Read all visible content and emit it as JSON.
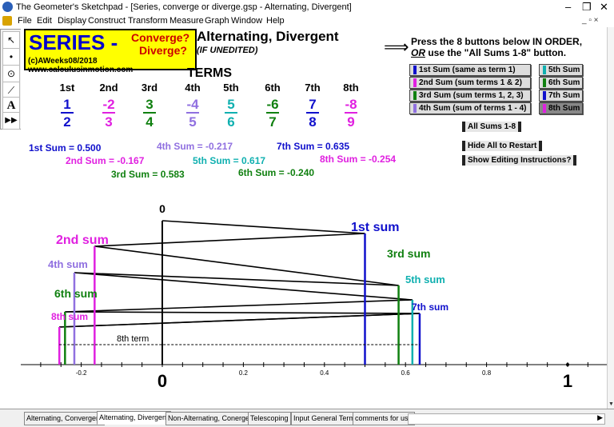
{
  "window": {
    "title": "The Geometer's Sketchpad - [Series, converge or diverge.gsp - Alternating, Divergent]",
    "controls": {
      "minimize": "–",
      "restore": "❐",
      "close": "✕"
    },
    "mdi_controls": "_ ▫ ×"
  },
  "menu": [
    "File",
    "Edit",
    "Display",
    "Construct",
    "Transform",
    "Measure",
    "Graph",
    "Window",
    "Help"
  ],
  "toolbox": [
    {
      "name": "arrow-tool-icon",
      "glyph": "↖"
    },
    {
      "name": "point-tool-icon",
      "glyph": "•"
    },
    {
      "name": "compass-tool-icon",
      "glyph": "⊙"
    },
    {
      "name": "straightedge-tool-icon",
      "glyph": "⟋"
    },
    {
      "name": "text-tool-icon",
      "glyph": "A"
    },
    {
      "name": "custom-tool-icon",
      "glyph": "▶▶"
    }
  ],
  "logo": {
    "series": "SERIES -",
    "q1": "Converge?",
    "q2": "Diverge?",
    "copyright": "(c)AWeeks08/2018 www.calculusinmotion.com"
  },
  "heading": {
    "title": "Alternating, Divergent",
    "subtitle": "(IF UNEDITED)"
  },
  "instructions": {
    "arrow": "⟹",
    "line1": "Press the 8 buttons below IN ORDER,",
    "line2_or": "OR",
    "line2_rest": " use the \"All Sums 1-8\" button."
  },
  "sum_buttons_left": [
    {
      "label": "1st Sum  (same as term 1)",
      "color": "#1010cc"
    },
    {
      "label": "2nd Sum (sum terms 1 & 2)",
      "color": "#e020e0"
    },
    {
      "label": "3rd Sum (sum terms 1, 2, 3)",
      "color": "#108010"
    },
    {
      "label": "4th Sum (sum of terms 1 - 4)",
      "color": "#9070e0"
    }
  ],
  "sum_buttons_right": [
    {
      "label": "5th Sum",
      "color": "#10b0b0"
    },
    {
      "label": "6th Sum",
      "color": "#108010"
    },
    {
      "label": "7th Sum",
      "color": "#1010cc"
    },
    {
      "label": "8th Sum",
      "color": "#e020e0"
    }
  ],
  "action_buttons": {
    "all_sums": "All Sums 1-8",
    "hide_all": "Hide All to Restart",
    "show_editing": "Show Editing Instructions?"
  },
  "terms": {
    "title": "TERMS",
    "columns": [
      {
        "ordinal": "1st",
        "num": "1",
        "den": "2",
        "color": "#1010cc"
      },
      {
        "ordinal": "2nd",
        "num": "-2",
        "den": "3",
        "color": "#e020e0"
      },
      {
        "ordinal": "3rd",
        "num": "3",
        "den": "4",
        "color": "#108010"
      },
      {
        "ordinal": "4th",
        "num": "-4",
        "den": "5",
        "color": "#9070e0"
      },
      {
        "ordinal": "5th",
        "num": "5",
        "den": "6",
        "color": "#10b0b0"
      },
      {
        "ordinal": "6th",
        "num": "-6",
        "den": "7",
        "color": "#108010"
      },
      {
        "ordinal": "7th",
        "num": "7",
        "den": "8",
        "color": "#1010cc"
      },
      {
        "ordinal": "8th",
        "num": "-8",
        "den": "9",
        "color": "#e020e0"
      }
    ]
  },
  "sums": [
    {
      "label": "1st Sum = 0.500",
      "value": 0.5,
      "color": "#1010cc"
    },
    {
      "label": "2nd Sum = -0.167",
      "value": -0.167,
      "color": "#e020e0"
    },
    {
      "label": "3rd Sum = 0.583",
      "value": 0.583,
      "color": "#108010"
    },
    {
      "label": "4th Sum = -0.217",
      "value": -0.217,
      "color": "#9070e0"
    },
    {
      "label": "5th Sum = 0.617",
      "value": 0.617,
      "color": "#10b0b0"
    },
    {
      "label": "6th Sum = -0.240",
      "value": -0.24,
      "color": "#108010"
    },
    {
      "label": "7th Sum = 0.635",
      "value": 0.635,
      "color": "#1010cc"
    },
    {
      "label": "8th Sum = -0.254",
      "value": -0.254,
      "color": "#e020e0"
    }
  ],
  "graph": {
    "zero_label": "0",
    "sum_labels": [
      "1st sum",
      "2nd sum",
      "3rd sum",
      "4th sum",
      "5th sum",
      "6th sum",
      "7th sum",
      "8th sum"
    ],
    "eighth_term_label": "8th term",
    "axis_ticks": [
      "-0.2",
      "0.2",
      "0.4",
      "0.6",
      "0.8"
    ],
    "axis_zero": "0",
    "axis_one": "1"
  },
  "tabs": [
    "Alternating, Convergent",
    "Alternating, Divergent",
    "Non-Alternating, Conergent",
    "Telescoping",
    "Input General Term",
    "comments for use"
  ],
  "active_tab": 1
}
